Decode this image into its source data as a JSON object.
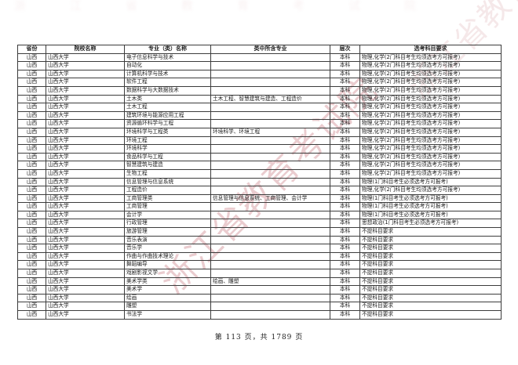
{
  "watermark": {
    "text": "浙江省教育考试院",
    "color": "#c97c82"
  },
  "footer": {
    "text": "第 113 页，共 1789 页"
  },
  "table": {
    "headers": [
      "省份",
      "院校名称",
      "专业（类）名称",
      "类中所含专业",
      "层次",
      "选考科目要求"
    ],
    "rows": [
      [
        "山西",
        "山西大学",
        "电子信息科学与技术",
        "",
        "本科",
        "物理,化学(2门科目考生均须选考方可报考)"
      ],
      [
        "山西",
        "山西大学",
        "自动化",
        "",
        "本科",
        "物理,化学(2门科目考生均须选考方可报考)"
      ],
      [
        "山西",
        "山西大学",
        "计算机科学与技术",
        "",
        "本科",
        "物理,化学(2门科目考生均须选考方可报考)"
      ],
      [
        "山西",
        "山西大学",
        "软件工程",
        "",
        "本科",
        "物理,化学(2门科目考生均须选考方可报考)"
      ],
      [
        "山西",
        "山西大学",
        "数据科学与大数据技术",
        "",
        "本科",
        "物理,化学(2门科目考生均须选考方可报考)"
      ],
      [
        "山西",
        "山西大学",
        "土木类",
        "土木工程、智慧建筑与建造、工程造价",
        "本科",
        "物理,化学(2门科目考生均须选考方可报考)"
      ],
      [
        "山西",
        "山西大学",
        "土木工程",
        "",
        "本科",
        "物理,化学(2门科目考生均须选考方可报考)"
      ],
      [
        "山西",
        "山西大学",
        "建筑环境与能源应用工程",
        "",
        "本科",
        "物理,化学(2门科目考生均须选考方可报考)"
      ],
      [
        "山西",
        "山西大学",
        "资源循环科学与工程",
        "",
        "本科",
        "物理,化学(2门科目考生均须选考方可报考)"
      ],
      [
        "山西",
        "山西大学",
        "环境科学与工程类",
        "环境科学、环境工程",
        "本科",
        "物理,化学(2门科目考生均须选考方可报考)"
      ],
      [
        "山西",
        "山西大学",
        "环境工程",
        "",
        "本科",
        "物理,化学(2门科目考生均须选考方可报考)"
      ],
      [
        "山西",
        "山西大学",
        "环境科学",
        "",
        "本科",
        "物理,化学(2门科目考生均须选考方可报考)"
      ],
      [
        "山西",
        "山西大学",
        "食品科学与工程",
        "",
        "本科",
        "物理,化学(2门科目考生均须选考方可报考)"
      ],
      [
        "山西",
        "山西大学",
        "智慧建筑与建造",
        "",
        "本科",
        "物理,化学(2门科目考生均须选考方可报考)"
      ],
      [
        "山西",
        "山西大学",
        "生物工程",
        "",
        "本科",
        "物理,化学(2门科目考生均须选考方可报考)"
      ],
      [
        "山西",
        "山西大学",
        "信息管理与信息系统",
        "",
        "本科",
        "物理(1门科目考生必须选考方可报考)"
      ],
      [
        "山西",
        "山西大学",
        "工程造价",
        "",
        "本科",
        "物理,化学(2门科目考生均须选考方可报考)"
      ],
      [
        "山西",
        "山西大学",
        "工商管理类",
        "信息管理与信息系统、工商管理、会计学",
        "本科",
        "物理(1门科目考生必须选考方可报考)"
      ],
      [
        "山西",
        "山西大学",
        "工商管理",
        "",
        "本科",
        "物理(1门科目考生必须选考方可报考)"
      ],
      [
        "山西",
        "山西大学",
        "会计学",
        "",
        "本科",
        "物理(1门科目考生必须选考方可报考)"
      ],
      [
        "山西",
        "山西大学",
        "行政管理",
        "",
        "本科",
        "思想政治(1门科目考生必须选考方可报考)"
      ],
      [
        "山西",
        "山西大学",
        "旅游管理",
        "",
        "本科",
        "不提科目要求"
      ],
      [
        "山西",
        "山西大学",
        "音乐表演",
        "",
        "本科",
        "不提科目要求"
      ],
      [
        "山西",
        "山西大学",
        "音乐学",
        "",
        "本科",
        "不提科目要求"
      ],
      [
        "山西",
        "山西大学",
        "作曲与作曲技术理论",
        "",
        "本科",
        "不提科目要求"
      ],
      [
        "山西",
        "山西大学",
        "舞蹈编导",
        "",
        "本科",
        "不提科目要求"
      ],
      [
        "山西",
        "山西大学",
        "戏剧影视文学",
        "",
        "本科",
        "不提科目要求"
      ],
      [
        "山西",
        "山西大学",
        "美术学类",
        "绘画、雕塑",
        "本科",
        "不提科目要求"
      ],
      [
        "山西",
        "山西大学",
        "美术学",
        "",
        "本科",
        "不提科目要求"
      ],
      [
        "山西",
        "山西大学",
        "绘画",
        "",
        "本科",
        "不提科目要求"
      ],
      [
        "山西",
        "山西大学",
        "雕塑",
        "",
        "本科",
        "不提科目要求"
      ],
      [
        "山西",
        "山西大学",
        "书法学",
        "",
        "本科",
        "不提科目要求"
      ]
    ],
    "column_align": [
      "c",
      "l",
      "l",
      "l",
      "c",
      "l"
    ]
  }
}
